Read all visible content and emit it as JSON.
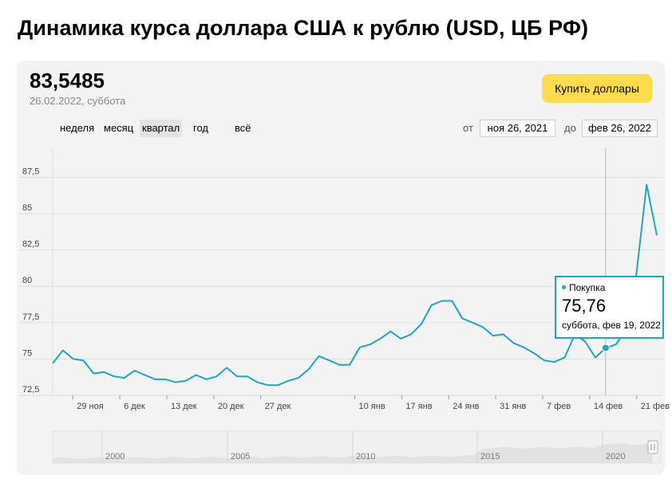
{
  "page_title": "Динамика курса доллара США к рублю (USD, ЦБ РФ)",
  "current_rate": "83,5485",
  "current_date": "26.02.2022, суббота",
  "buy_button": "Купить доллары",
  "periods": [
    {
      "label": "неделя",
      "active": false
    },
    {
      "label": "месяц",
      "active": false
    },
    {
      "label": "квартал",
      "active": true
    },
    {
      "label": "год",
      "active": false
    },
    {
      "label": "всё",
      "active": false
    }
  ],
  "range": {
    "from_label": "от",
    "from_value": "ноя 26, 2021",
    "to_label": "до",
    "to_value": "фев 26, 2022"
  },
  "tooltip": {
    "series": "Покупка",
    "value": "75,76",
    "date": "суббота, фев 19, 2022"
  },
  "colors": {
    "line": "#1ba8c6",
    "button": "#ffdb4d",
    "panel": "#f3f3f3"
  },
  "chart_data": {
    "type": "line",
    "ylim": [
      72.5,
      89.5
    ],
    "y_ticks": [
      72.5,
      75,
      77.5,
      80,
      82.5,
      85,
      87.5
    ],
    "y_tick_labels": [
      "72,5",
      "75",
      "77,5",
      "80",
      "82,5",
      "85",
      "87,5"
    ],
    "x_ticks": [
      {
        "day": 3,
        "label": "29 ноя"
      },
      {
        "day": 10,
        "label": "6 дек"
      },
      {
        "day": 17,
        "label": "13 дек"
      },
      {
        "day": 24,
        "label": "20 дек"
      },
      {
        "day": 31,
        "label": "27 дек"
      },
      {
        "day": 45,
        "label": "10 янв"
      },
      {
        "day": 52,
        "label": "17 янв"
      },
      {
        "day": 59,
        "label": "24 янв"
      },
      {
        "day": 66,
        "label": "31 янв"
      },
      {
        "day": 73,
        "label": "7 фев"
      },
      {
        "day": 80,
        "label": "14 фев"
      },
      {
        "day": 87,
        "label": "21 фев"
      }
    ],
    "series": [
      {
        "name": "Покупка",
        "points": [
          [
            0,
            74.7
          ],
          [
            1.3,
            75.6
          ],
          [
            2.6,
            75.0
          ],
          [
            3.9,
            74.9
          ],
          [
            5.2,
            74.0
          ],
          [
            6.5,
            74.1
          ],
          [
            7.8,
            73.8
          ],
          [
            9.1,
            73.7
          ],
          [
            10.4,
            74.2
          ],
          [
            11.7,
            73.9
          ],
          [
            13,
            73.6
          ],
          [
            14.3,
            73.6
          ],
          [
            15.6,
            73.4
          ],
          [
            16.9,
            73.5
          ],
          [
            18.2,
            73.9
          ],
          [
            19.5,
            73.6
          ],
          [
            20.8,
            73.8
          ],
          [
            22.1,
            74.4
          ],
          [
            23.4,
            73.8
          ],
          [
            24.7,
            73.8
          ],
          [
            26,
            73.4
          ],
          [
            27.3,
            73.2
          ],
          [
            28.6,
            73.2
          ],
          [
            29.9,
            73.5
          ],
          [
            31.2,
            73.7
          ],
          [
            32.5,
            74.3
          ],
          [
            33.8,
            75.2
          ],
          [
            35.1,
            74.9
          ],
          [
            36.4,
            74.6
          ],
          [
            37.7,
            74.6
          ],
          [
            39,
            75.8
          ],
          [
            40.3,
            76.0
          ],
          [
            41.6,
            76.4
          ],
          [
            42.9,
            76.9
          ],
          [
            44.2,
            76.4
          ],
          [
            45.5,
            76.7
          ],
          [
            46.8,
            77.4
          ],
          [
            48.1,
            78.7
          ],
          [
            49.4,
            79.0
          ],
          [
            50.7,
            79.0
          ],
          [
            52,
            77.8
          ],
          [
            53.3,
            77.5
          ],
          [
            54.6,
            77.2
          ],
          [
            55.9,
            76.6
          ],
          [
            57.2,
            76.7
          ],
          [
            58.5,
            76.1
          ],
          [
            59.8,
            75.8
          ],
          [
            61.1,
            75.4
          ],
          [
            62.4,
            74.9
          ],
          [
            63.7,
            74.8
          ],
          [
            65,
            75.1
          ],
          [
            66.3,
            76.7
          ],
          [
            67.6,
            76.2
          ],
          [
            68.9,
            75.1
          ],
          [
            70.2,
            75.76
          ],
          [
            71.5,
            76.0
          ],
          [
            72.8,
            77.0
          ],
          [
            74.1,
            80.8
          ],
          [
            75.4,
            87.0
          ],
          [
            76.7,
            83.5
          ]
        ]
      }
    ],
    "highlight_point": [
      70.2,
      75.76
    ],
    "navigator": {
      "year_labels": [
        "2000",
        "2005",
        "2010",
        "2015",
        "2020"
      ]
    }
  }
}
